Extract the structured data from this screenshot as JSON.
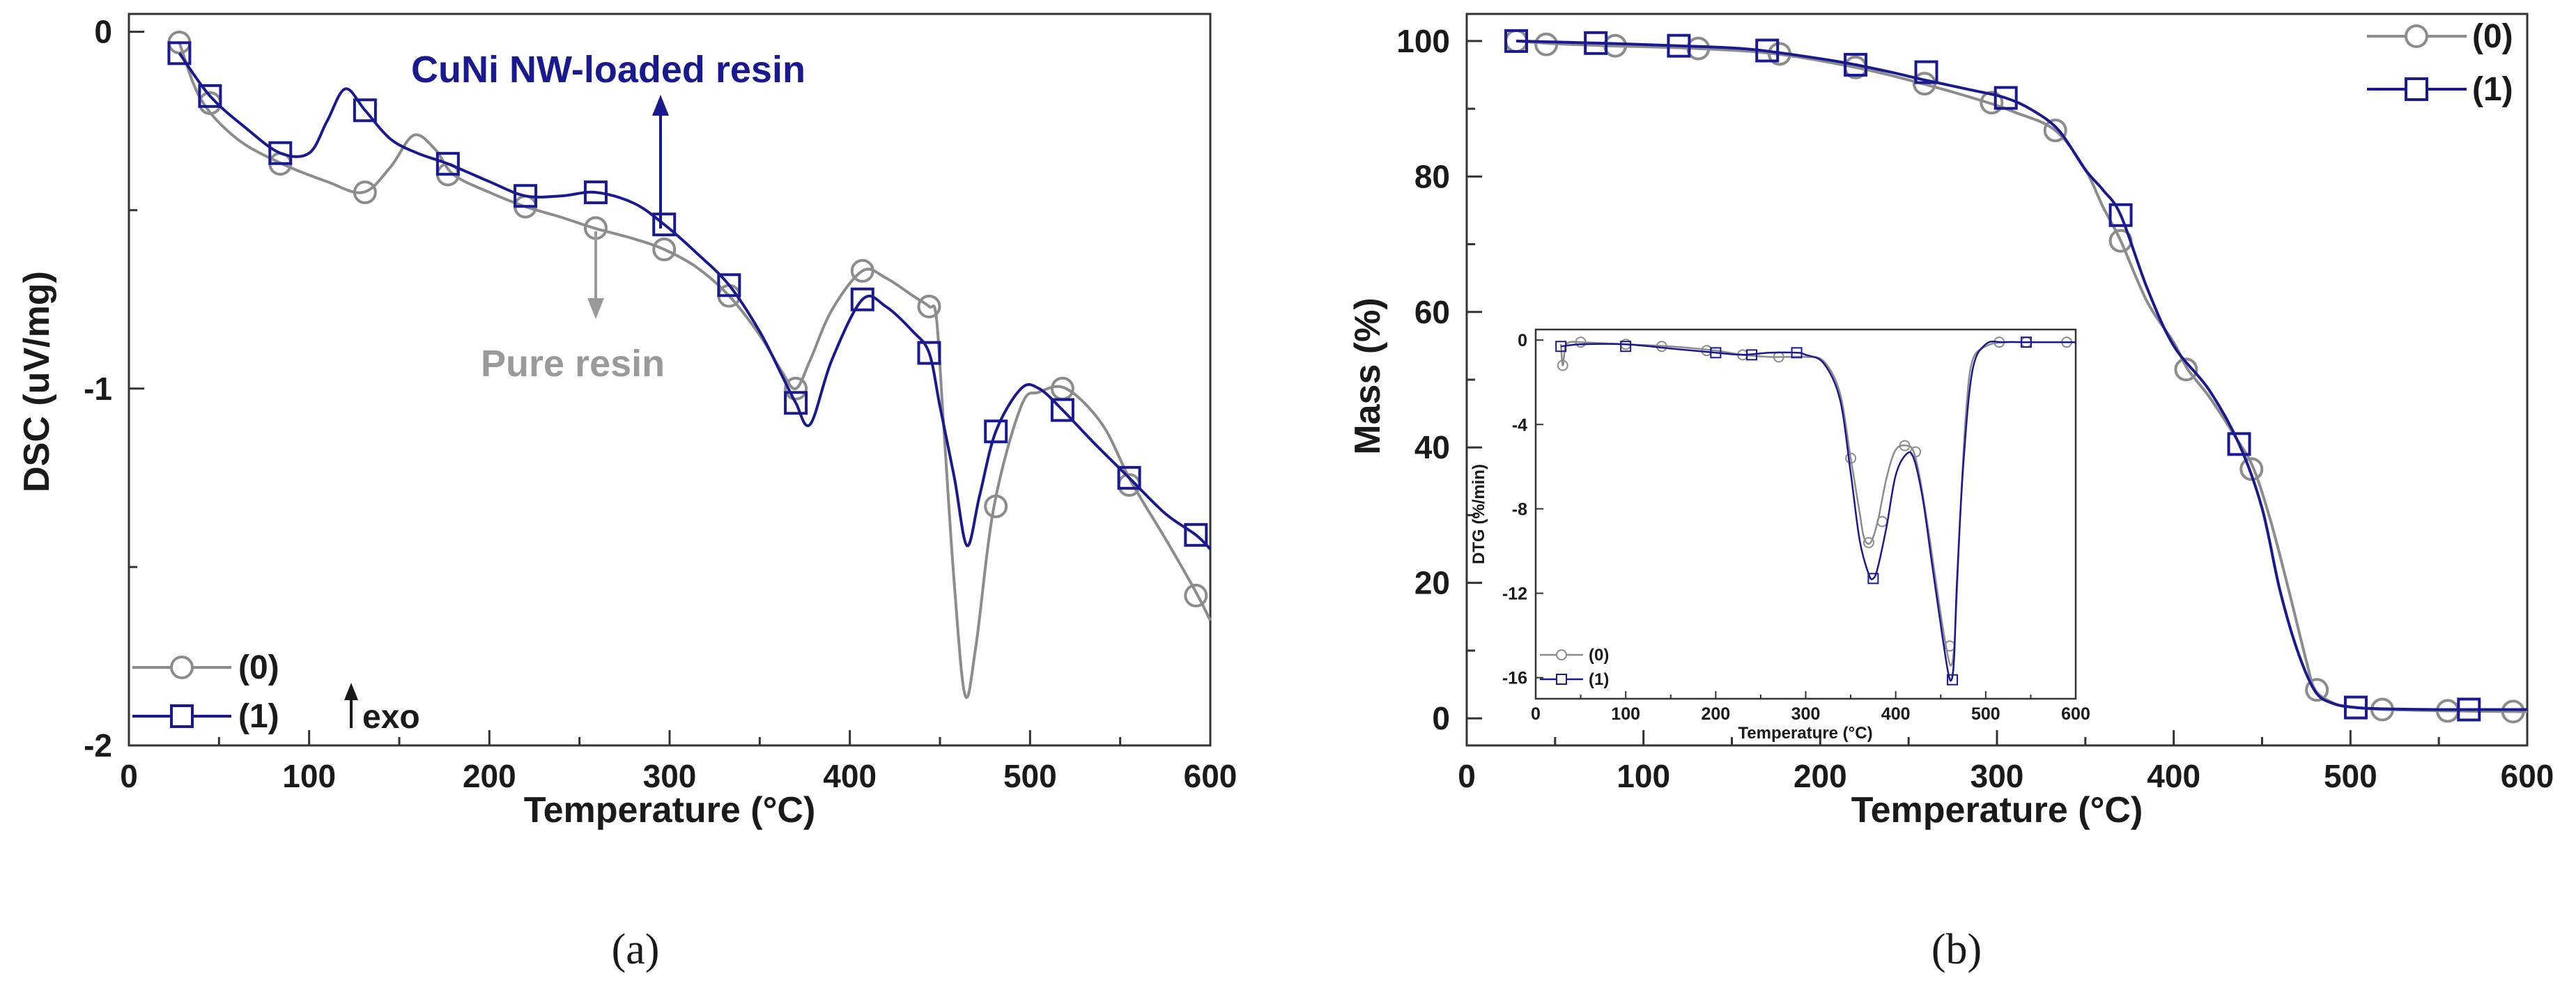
{
  "chart_data": [
    {
      "type": "line",
      "panel_label": "(a)",
      "xlabel": "Temperature (°C)",
      "ylabel": "DSC (uV/mg)",
      "xlim": [
        0,
        600
      ],
      "ylim": [
        -2,
        0.05
      ],
      "x_ticks": [
        0,
        100,
        200,
        300,
        400,
        500,
        600
      ],
      "y_ticks": [
        0,
        -1,
        -2
      ],
      "x_tick_labels": [
        "0",
        "100",
        "200",
        "300",
        "400",
        "500",
        "600"
      ],
      "y_tick_labels": [
        "0",
        "-1",
        "-2"
      ],
      "legend": {
        "position": "bottom-left",
        "entries": [
          "(0)",
          "(1)"
        ]
      },
      "series": [
        {
          "name": "(0)",
          "color": "#8c8c8c",
          "marker": "circle",
          "x": [
            28,
            40,
            60,
            85,
            110,
            130,
            145,
            158,
            170,
            180,
            200,
            220,
            240,
            258,
            280,
            297,
            315,
            333,
            350,
            362,
            370,
            378,
            390,
            407,
            420,
            435,
            444,
            448,
            452,
            458,
            464,
            470,
            480,
            495,
            505,
            520,
            540,
            556,
            575,
            592,
            600
          ],
          "y": [
            -0.03,
            -0.19,
            -0.3,
            -0.37,
            -0.42,
            -0.45,
            -0.38,
            -0.29,
            -0.33,
            -0.4,
            -0.45,
            -0.49,
            -0.52,
            -0.55,
            -0.58,
            -0.61,
            -0.66,
            -0.74,
            -0.85,
            -0.95,
            -1.0,
            -0.92,
            -0.78,
            -0.67,
            -0.69,
            -0.74,
            -0.77,
            -0.8,
            -1.1,
            -1.55,
            -1.86,
            -1.72,
            -1.33,
            -1.05,
            -1.01,
            -1.0,
            -1.1,
            -1.26,
            -1.42,
            -1.57,
            -1.65
          ],
          "marker_x": [
            28,
            45,
            84,
            131,
            177,
            220,
            259,
            297,
            333,
            370,
            407,
            444,
            481,
            518,
            555,
            592
          ],
          "marker_y": [
            -0.03,
            -0.2,
            -0.37,
            -0.45,
            -0.4,
            -0.49,
            -0.55,
            -0.61,
            -0.74,
            -1.0,
            -0.67,
            -0.77,
            -1.33,
            -1.0,
            -1.27,
            -1.58
          ]
        },
        {
          "name": "(1)",
          "color": "#1a1a90",
          "marker": "square",
          "x": [
            28,
            45,
            65,
            84,
            100,
            110,
            120,
            131,
            145,
            160,
            177,
            200,
            220,
            240,
            259,
            280,
            297,
            315,
            333,
            350,
            362,
            370,
            378,
            390,
            407,
            420,
            435,
            444,
            450,
            458,
            465,
            472,
            481,
            495,
            505,
            518,
            535,
            555,
            575,
            592,
            600
          ],
          "y": [
            -0.06,
            -0.18,
            -0.27,
            -0.34,
            -0.34,
            -0.25,
            -0.16,
            -0.22,
            -0.3,
            -0.34,
            -0.37,
            -0.42,
            -0.46,
            -0.46,
            -0.45,
            -0.48,
            -0.54,
            -0.62,
            -0.71,
            -0.84,
            -0.96,
            -1.04,
            -1.1,
            -0.92,
            -0.75,
            -0.77,
            -0.84,
            -0.9,
            -1.05,
            -1.25,
            -1.44,
            -1.3,
            -1.12,
            -1.0,
            -1.0,
            -1.06,
            -1.15,
            -1.25,
            -1.35,
            -1.41,
            -1.45
          ],
          "marker_x": [
            28,
            45,
            84,
            131,
            177,
            220,
            259,
            297,
            333,
            370,
            407,
            444,
            481,
            518,
            555,
            592
          ],
          "marker_y": [
            -0.06,
            -0.18,
            -0.34,
            -0.22,
            -0.37,
            -0.46,
            -0.45,
            -0.54,
            -0.71,
            -1.04,
            -0.75,
            -0.9,
            -1.12,
            -1.06,
            -1.25,
            -1.41
          ]
        }
      ],
      "annotations": [
        {
          "text": "CuNi NW-loaded resin",
          "color": "#1a1a90",
          "arrow": "up"
        },
        {
          "text": "Pure resin",
          "color": "#9a9a9a",
          "arrow": "down"
        },
        {
          "text": "exo",
          "arrow": "up"
        }
      ]
    },
    {
      "type": "line",
      "panel_label": "(b)",
      "xlabel": "Temperature (°C)",
      "ylabel": "Mass (%)",
      "xlim": [
        0,
        600
      ],
      "ylim": [
        -4,
        104
      ],
      "x_ticks": [
        0,
        100,
        200,
        300,
        400,
        500,
        600
      ],
      "y_ticks": [
        0,
        20,
        40,
        60,
        80,
        100
      ],
      "x_tick_labels": [
        "0",
        "100",
        "200",
        "300",
        "400",
        "500",
        "600"
      ],
      "y_tick_labels": [
        "0",
        "20",
        "40",
        "60",
        "80",
        "100"
      ],
      "legend": {
        "position": "top-right",
        "entries": [
          "(0)",
          "(1)"
        ]
      },
      "series": [
        {
          "name": "(0)",
          "color": "#8c8c8c",
          "marker": "circle",
          "x": [
            28,
            50,
            80,
            130,
            175,
            220,
            255,
            290,
            310,
            333,
            350,
            360,
            370,
            385,
            400,
            408,
            420,
            435,
            445,
            455,
            465,
            475,
            480,
            490,
            500,
            520,
            555,
            592,
            600
          ],
          "y": [
            100,
            99.6,
            99.3,
            98.9,
            98.1,
            96.1,
            93.9,
            91.3,
            89.5,
            86.8,
            81,
            75.5,
            70.5,
            61.5,
            55.5,
            51.5,
            47.5,
            41.5,
            37,
            29,
            19,
            8.5,
            4.2,
            2.3,
            1.7,
            1.3,
            1.1,
            1.0,
            1.0
          ],
          "marker_x": [
            28,
            45,
            84,
            131,
            177,
            220,
            259,
            297,
            333,
            370,
            407,
            444,
            481,
            518,
            555,
            592
          ],
          "marker_y": [
            100,
            99.5,
            99.3,
            98.9,
            98.1,
            96.1,
            93.7,
            90.9,
            86.8,
            70.5,
            51.5,
            36.8,
            4.2,
            1.3,
            1.1,
            1.0
          ]
        },
        {
          "name": "(1)",
          "color": "#1a1a90",
          "marker": "square",
          "x": [
            28,
            73,
            120,
            160,
            200,
            220,
            240,
            260,
            285,
            305,
            320,
            335,
            350,
            360,
            370,
            385,
            400,
            420,
            437,
            450,
            460,
            470,
            480,
            490,
            503,
            520,
            550,
            567,
            600
          ],
          "y": [
            100,
            99.7,
            99.3,
            98.8,
            97.4,
            96.5,
            95.4,
            94.2,
            92.8,
            91.6,
            89.8,
            86.8,
            81,
            78,
            74.3,
            63.5,
            55,
            48.5,
            40.5,
            31,
            19,
            10,
            4,
            2.2,
            1.6,
            1.4,
            1.3,
            1.3,
            1.3
          ],
          "marker_x": [
            28,
            73,
            120,
            170,
            220,
            260,
            305,
            370,
            437,
            503,
            567
          ],
          "marker_y": [
            100,
            99.7,
            99.3,
            98.6,
            96.5,
            95.4,
            91.6,
            74.3,
            40.5,
            1.6,
            1.3
          ]
        }
      ]
    },
    {
      "type": "line",
      "inset_of": "(b)",
      "xlabel": "Temperature (°C)",
      "ylabel": "DTG (%/min)",
      "xlim": [
        0,
        600
      ],
      "ylim": [
        -17,
        0.5
      ],
      "x_ticks": [
        0,
        100,
        200,
        300,
        400,
        500,
        600
      ],
      "y_ticks": [
        0,
        -4,
        -8,
        -12,
        -16
      ],
      "x_tick_labels": [
        "0",
        "100",
        "200",
        "300",
        "400",
        "500",
        "600"
      ],
      "y_tick_labels": [
        "0",
        "-4",
        "-8",
        "-12",
        "-16"
      ],
      "legend": {
        "position": "bottom-left",
        "entries": [
          "(0)",
          "(1)"
        ]
      },
      "series": [
        {
          "name": "(0)",
          "color": "#8c8c8c",
          "marker": "circle",
          "x": [
            28,
            30,
            33,
            38,
            50,
            100,
            150,
            200,
            230,
            260,
            275,
            300,
            320,
            338,
            350,
            360,
            365,
            372,
            380,
            390,
            400,
            412,
            420,
            428,
            438,
            450,
            458,
            462,
            465,
            468,
            472,
            478,
            485,
            500,
            520,
            550,
            600
          ],
          "y": [
            -0.2,
            -1.2,
            -0.3,
            -0.1,
            -0.1,
            -0.2,
            -0.3,
            -0.5,
            -0.7,
            -0.8,
            -0.8,
            -0.8,
            -1.0,
            -2.5,
            -5.6,
            -8.2,
            -9.4,
            -9.6,
            -8.6,
            -6.5,
            -5.2,
            -5.0,
            -5.3,
            -6.8,
            -9.5,
            -13.0,
            -15.0,
            -15.4,
            -14.5,
            -12,
            -8,
            -3.5,
            -1.0,
            -0.3,
            -0.1,
            -0.1,
            -0.1
          ],
          "marker_x": [
            30,
            50,
            100,
            140,
            190,
            230,
            270,
            350,
            370,
            385,
            410,
            422,
            460,
            515,
            545,
            590
          ],
          "marker_y": [
            -1.2,
            -0.1,
            -0.2,
            -0.3,
            -0.5,
            -0.7,
            -0.8,
            -5.6,
            -9.6,
            -8.6,
            -5.0,
            -5.3,
            -14.5,
            -0.1,
            -0.1,
            -0.1
          ]
        },
        {
          "name": "(1)",
          "color": "#1a1a90",
          "marker": "square",
          "x": [
            28,
            50,
            100,
            150,
            200,
            230,
            260,
            290,
            300,
            320,
            338,
            350,
            360,
            370,
            375,
            380,
            390,
            400,
            412,
            420,
            430,
            440,
            450,
            458,
            462,
            465,
            468,
            475,
            485,
            500,
            520,
            550,
            600
          ],
          "y": [
            -0.3,
            -0.2,
            -0.2,
            -0.4,
            -0.6,
            -0.7,
            -0.6,
            -0.6,
            -0.7,
            -1.1,
            -2.8,
            -6.3,
            -9.5,
            -11.1,
            -11.3,
            -10.8,
            -8.8,
            -6.4,
            -5.4,
            -5.6,
            -7.5,
            -10.5,
            -13.5,
            -15.7,
            -16.1,
            -15.0,
            -11.5,
            -6,
            -1.5,
            -0.2,
            -0.1,
            -0.1,
            -0.1
          ],
          "marker_x": [
            28,
            100,
            200,
            240,
            290,
            375,
            463,
            545
          ],
          "marker_y": [
            -0.3,
            -0.3,
            -0.6,
            -0.7,
            -0.6,
            -11.3,
            -16.1,
            -0.1
          ]
        }
      ]
    }
  ]
}
